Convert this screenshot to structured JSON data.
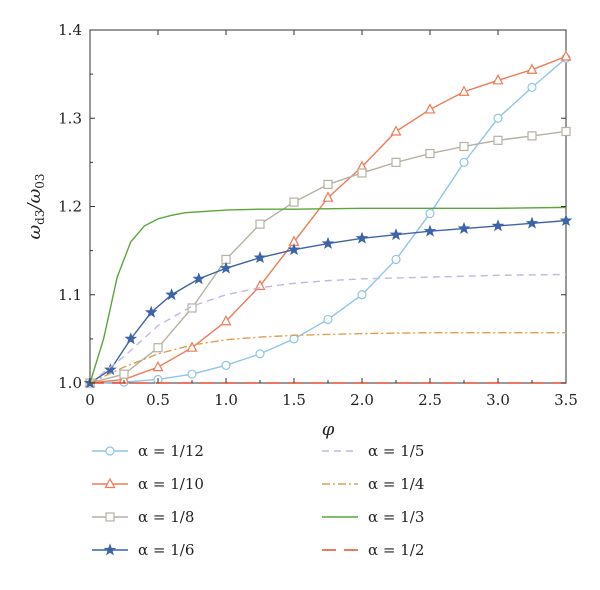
{
  "chart_data": {
    "type": "line",
    "title": "",
    "xlabel": "φ",
    "ylabel": {
      "main": "ω",
      "sub1": "d3",
      "sep": "/ω",
      "sub2": "03"
    },
    "xlim": [
      0,
      3.5
    ],
    "ylim": [
      1.0,
      1.4
    ],
    "xticks": [
      "0",
      "0.5",
      "1.0",
      "1.5",
      "2.0",
      "2.5",
      "3.0",
      "3.5"
    ],
    "yticks": [
      "1.0",
      "1.1",
      "1.2",
      "1.3",
      "1.4"
    ],
    "grid": false,
    "legend_position": "below",
    "series": [
      {
        "name": "α = 1/12",
        "color": "#8fc5e6",
        "marker": "circle",
        "dash": "",
        "x": [
          0,
          0.25,
          0.5,
          0.75,
          1.0,
          1.25,
          1.5,
          1.75,
          2.0,
          2.25,
          2.5,
          2.75,
          3.0,
          3.25,
          3.5
        ],
        "y": [
          1.0,
          1.001,
          1.004,
          1.01,
          1.02,
          1.033,
          1.05,
          1.072,
          1.1,
          1.14,
          1.192,
          1.25,
          1.3,
          1.335,
          1.368
        ]
      },
      {
        "name": "α = 1/10",
        "color": "#f07a55",
        "marker": "triangle",
        "dash": "",
        "x": [
          0,
          0.25,
          0.5,
          0.75,
          1.0,
          1.25,
          1.5,
          1.75,
          2.0,
          2.25,
          2.5,
          2.75,
          3.0,
          3.25,
          3.5
        ],
        "y": [
          1.0,
          1.004,
          1.018,
          1.04,
          1.07,
          1.11,
          1.16,
          1.21,
          1.245,
          1.285,
          1.31,
          1.33,
          1.343,
          1.355,
          1.37
        ]
      },
      {
        "name": "α = 1/8",
        "color": "#b5b1a2",
        "marker": "square",
        "dash": "",
        "x": [
          0,
          0.25,
          0.5,
          0.75,
          1.0,
          1.25,
          1.5,
          1.75,
          2.0,
          2.25,
          2.5,
          2.75,
          3.0,
          3.25,
          3.5
        ],
        "y": [
          1.0,
          1.01,
          1.04,
          1.085,
          1.14,
          1.18,
          1.205,
          1.225,
          1.238,
          1.25,
          1.26,
          1.268,
          1.275,
          1.28,
          1.285
        ]
      },
      {
        "name": "α = 1/6",
        "color": "#3d64aa",
        "marker": "star",
        "dash": "",
        "x": [
          0,
          0.15,
          0.3,
          0.45,
          0.6,
          0.8,
          1.0,
          1.25,
          1.5,
          1.75,
          2.0,
          2.25,
          2.5,
          2.75,
          3.0,
          3.25,
          3.5
        ],
        "y": [
          1.0,
          1.015,
          1.05,
          1.08,
          1.1,
          1.118,
          1.13,
          1.142,
          1.151,
          1.158,
          1.164,
          1.168,
          1.172,
          1.175,
          1.178,
          1.181,
          1.184
        ]
      },
      {
        "name": "α = 1/5",
        "color": "#c5b6dd",
        "marker": "none",
        "dash": "7,5",
        "x": [
          0,
          0.25,
          0.5,
          0.75,
          1.0,
          1.25,
          1.5,
          1.75,
          2.0,
          2.5,
          3.0,
          3.5
        ],
        "y": [
          1.0,
          1.03,
          1.065,
          1.087,
          1.1,
          1.108,
          1.113,
          1.116,
          1.118,
          1.12,
          1.122,
          1.123
        ]
      },
      {
        "name": "α = 1/4",
        "color": "#d9a050",
        "marker": "none",
        "dash": "8,3,2,3",
        "x": [
          0,
          0.25,
          0.5,
          0.75,
          1.0,
          1.25,
          1.5,
          1.75,
          2.0,
          2.5,
          3.0,
          3.5
        ],
        "y": [
          1.0,
          1.018,
          1.033,
          1.043,
          1.049,
          1.052,
          1.054,
          1.055,
          1.056,
          1.057,
          1.057,
          1.057
        ]
      },
      {
        "name": "α = 1/3",
        "color": "#5aa63c",
        "marker": "none",
        "dash": "",
        "x": [
          0,
          0.1,
          0.2,
          0.3,
          0.4,
          0.5,
          0.6,
          0.7,
          0.8,
          1.0,
          1.25,
          1.5,
          2.0,
          2.5,
          3.0,
          3.5
        ],
        "y": [
          1.0,
          1.05,
          1.12,
          1.16,
          1.178,
          1.186,
          1.19,
          1.193,
          1.194,
          1.196,
          1.197,
          1.197,
          1.198,
          1.198,
          1.198,
          1.199
        ]
      },
      {
        "name": "α = 1/2",
        "color": "#e84a30",
        "marker": "none",
        "dash": "14,8",
        "x": [
          0,
          3.5
        ],
        "y": [
          1.0,
          1.0
        ]
      }
    ]
  }
}
